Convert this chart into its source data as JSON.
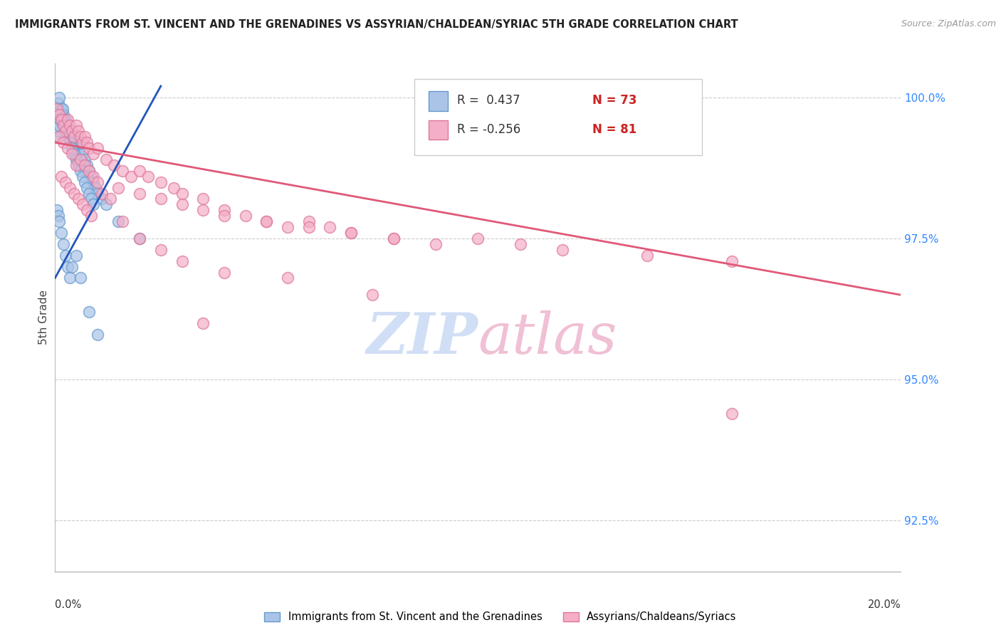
{
  "title": "IMMIGRANTS FROM ST. VINCENT AND THE GRENADINES VS ASSYRIAN/CHALDEAN/SYRIAC 5TH GRADE CORRELATION CHART",
  "source": "Source: ZipAtlas.com",
  "ylabel": "5th Grade",
  "right_yticks": [
    92.5,
    95.0,
    97.5,
    100.0
  ],
  "right_yticklabels": [
    "92.5%",
    "95.0%",
    "97.5%",
    "100.0%"
  ],
  "xmin": 0.0,
  "xmax": 20.0,
  "ymin": 91.6,
  "ymax": 100.6,
  "legend_r1": "R =  0.437",
  "legend_n1": "N = 73",
  "legend_r2": "R = -0.256",
  "legend_n2": "N = 81",
  "label1": "Immigrants from St. Vincent and the Grenadines",
  "label2": "Assyrians/Chaldeans/Syriacs",
  "color1": "#aac4e8",
  "color2": "#f4aec8",
  "line_color1": "#2255bb",
  "line_color2": "#e05878",
  "watermark_zip_color": "#d0dff5",
  "watermark_atlas_color": "#f0c0d5",
  "blue_line_x0": 0.0,
  "blue_line_y0": 96.8,
  "blue_line_x1": 2.5,
  "blue_line_y1": 100.2,
  "pink_line_x0": 0.0,
  "pink_line_y0": 99.2,
  "pink_line_x1": 20.0,
  "pink_line_y1": 96.5,
  "blue_x": [
    0.05,
    0.08,
    0.1,
    0.12,
    0.15,
    0.18,
    0.2,
    0.22,
    0.25,
    0.28,
    0.3,
    0.32,
    0.35,
    0.38,
    0.4,
    0.42,
    0.45,
    0.48,
    0.5,
    0.52,
    0.55,
    0.58,
    0.6,
    0.62,
    0.65,
    0.68,
    0.7,
    0.72,
    0.75,
    0.8,
    0.85,
    0.9,
    0.95,
    1.0,
    1.1,
    1.2,
    1.5,
    2.0,
    0.05,
    0.08,
    0.1,
    0.12,
    0.15,
    0.18,
    0.2,
    0.22,
    0.25,
    0.3,
    0.35,
    0.4,
    0.45,
    0.5,
    0.55,
    0.6,
    0.65,
    0.7,
    0.75,
    0.8,
    0.85,
    0.9,
    0.05,
    0.08,
    0.1,
    0.15,
    0.2,
    0.25,
    0.3,
    0.35,
    0.4,
    0.5,
    0.6,
    0.8,
    1.0
  ],
  "blue_y": [
    99.8,
    99.9,
    100.0,
    99.7,
    99.8,
    99.6,
    99.7,
    99.5,
    99.6,
    99.4,
    99.5,
    99.3,
    99.4,
    99.2,
    99.3,
    99.1,
    99.2,
    99.0,
    99.1,
    98.9,
    99.0,
    98.8,
    99.2,
    98.9,
    99.0,
    98.8,
    98.9,
    98.7,
    98.8,
    98.7,
    98.6,
    98.5,
    98.4,
    98.3,
    98.2,
    98.1,
    97.8,
    97.5,
    99.3,
    99.4,
    99.5,
    99.6,
    99.7,
    99.8,
    99.6,
    99.5,
    99.4,
    99.3,
    99.2,
    99.1,
    99.0,
    98.9,
    98.8,
    98.7,
    98.6,
    98.5,
    98.4,
    98.3,
    98.2,
    98.1,
    98.0,
    97.9,
    97.8,
    97.6,
    97.4,
    97.2,
    97.0,
    96.8,
    97.0,
    97.2,
    96.8,
    96.2,
    95.8
  ],
  "pink_x": [
    0.05,
    0.1,
    0.15,
    0.2,
    0.25,
    0.3,
    0.35,
    0.4,
    0.45,
    0.5,
    0.55,
    0.6,
    0.65,
    0.7,
    0.75,
    0.8,
    0.9,
    1.0,
    1.2,
    1.4,
    1.6,
    1.8,
    2.0,
    2.2,
    2.5,
    2.8,
    3.0,
    3.5,
    4.0,
    4.5,
    5.0,
    5.5,
    6.0,
    6.5,
    7.0,
    8.0,
    9.0,
    10.0,
    11.0,
    12.0,
    14.0,
    16.0,
    0.1,
    0.2,
    0.3,
    0.4,
    0.5,
    0.6,
    0.7,
    0.8,
    0.9,
    1.0,
    1.5,
    2.0,
    2.5,
    3.0,
    3.5,
    4.0,
    5.0,
    6.0,
    7.0,
    8.0,
    0.15,
    0.25,
    0.35,
    0.45,
    0.55,
    0.65,
    0.75,
    0.85,
    1.1,
    1.3,
    1.6,
    2.0,
    2.5,
    3.0,
    4.0,
    5.5,
    7.5,
    16.0,
    3.5
  ],
  "pink_y": [
    99.8,
    99.7,
    99.6,
    99.5,
    99.4,
    99.6,
    99.5,
    99.4,
    99.3,
    99.5,
    99.4,
    99.3,
    99.2,
    99.3,
    99.2,
    99.1,
    99.0,
    99.1,
    98.9,
    98.8,
    98.7,
    98.6,
    98.7,
    98.6,
    98.5,
    98.4,
    98.3,
    98.2,
    98.0,
    97.9,
    97.8,
    97.7,
    97.8,
    97.7,
    97.6,
    97.5,
    97.4,
    97.5,
    97.4,
    97.3,
    97.2,
    97.1,
    99.3,
    99.2,
    99.1,
    99.0,
    98.8,
    98.9,
    98.8,
    98.7,
    98.6,
    98.5,
    98.4,
    98.3,
    98.2,
    98.1,
    98.0,
    97.9,
    97.8,
    97.7,
    97.6,
    97.5,
    98.6,
    98.5,
    98.4,
    98.3,
    98.2,
    98.1,
    98.0,
    97.9,
    98.3,
    98.2,
    97.8,
    97.5,
    97.3,
    97.1,
    96.9,
    96.8,
    96.5,
    94.4,
    96.0
  ]
}
